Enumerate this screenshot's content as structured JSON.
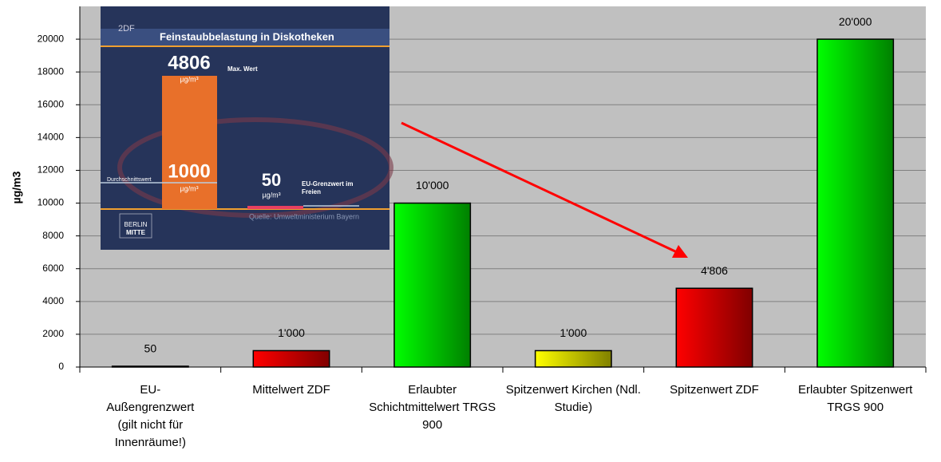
{
  "chart_data": {
    "type": "bar",
    "y_label": "µg/m3",
    "categories": [
      "EU-Außengrenzwert (gilt nicht für Innenräume!)",
      "Mittelwert ZDF",
      "Erlaubter Schichtmittelwert TRGS 900",
      "Spitzenwert Kirchen (Ndl. Studie)",
      "Spitzenwert ZDF",
      "Erlaubter Spitzenwert TRGS 900"
    ],
    "values": [
      50,
      1000,
      10000,
      1000,
      4806,
      20000
    ],
    "value_labels": [
      "50",
      "1'000",
      "10'000",
      "1'000",
      "4'806",
      "20'000"
    ],
    "colors": [
      "#ff0000",
      "#ff0000",
      "#00ff00",
      "#ffff00",
      "#ff0000",
      "#00ff00"
    ],
    "ylim": [
      0,
      22000
    ],
    "yticks": [
      0,
      2000,
      4000,
      6000,
      8000,
      10000,
      12000,
      14000,
      16000,
      18000,
      20000
    ],
    "grid": true
  },
  "inset": {
    "logo": "2DF",
    "title": "Feinstaubbelastung in Diskotheken",
    "max_value": "4806",
    "max_label": "Max. Wert",
    "max_unit": "µg/m³",
    "avg_value": "1000",
    "avg_label": "Durchschnittswert",
    "avg_unit": "µg/m³",
    "eu_value": "50",
    "eu_unit": "µg/m³",
    "eu_label": "EU-Grenzwert im Freien",
    "source": "Quelle: Umweltministerium Bayern",
    "station_1": "BERLIN",
    "station_2": "MITTE"
  }
}
